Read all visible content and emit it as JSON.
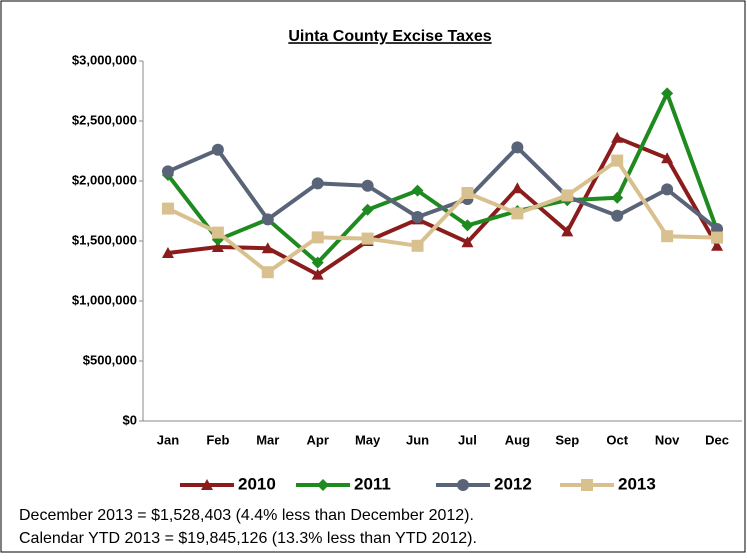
{
  "chart_data": {
    "type": "line",
    "title": "Uinta County Excise Taxes",
    "categories": [
      "Jan",
      "Feb",
      "Mar",
      "Apr",
      "May",
      "Jun",
      "Jul",
      "Aug",
      "Sep",
      "Oct",
      "Nov",
      "Dec"
    ],
    "series": [
      {
        "name": "2010",
        "color": "#8b1c1c",
        "marker": "triangle",
        "values": [
          1400000,
          1450000,
          1440000,
          1220000,
          1500000,
          1680000,
          1490000,
          1940000,
          1580000,
          2360000,
          2190000,
          1460000
        ]
      },
      {
        "name": "2011",
        "color": "#1f8a1f",
        "marker": "diamond",
        "values": [
          2050000,
          1510000,
          1680000,
          1320000,
          1760000,
          1920000,
          1630000,
          1750000,
          1840000,
          1860000,
          2730000,
          1590000
        ]
      },
      {
        "name": "2012",
        "color": "#5a6479",
        "marker": "circle",
        "values": [
          2080000,
          2260000,
          1680000,
          1980000,
          1960000,
          1700000,
          1850000,
          2280000,
          1870000,
          1710000,
          1930000,
          1600000
        ]
      },
      {
        "name": "2013",
        "color": "#d9c08f",
        "marker": "square",
        "values": [
          1770000,
          1570000,
          1240000,
          1530000,
          1520000,
          1460000,
          1900000,
          1730000,
          1880000,
          2170000,
          1540000,
          1528403
        ]
      }
    ],
    "ylim": [
      0,
      3000000
    ],
    "yticks": [
      {
        "value": 0,
        "label": "$0"
      },
      {
        "value": 500000,
        "label": "$500,000"
      },
      {
        "value": 1000000,
        "label": "$1,000,000"
      },
      {
        "value": 1500000,
        "label": "$1,500,000"
      },
      {
        "value": 2000000,
        "label": "$2,000,000"
      },
      {
        "value": 2500000,
        "label": "$2,500,000"
      },
      {
        "value": 3000000,
        "label": "$3,000,000"
      }
    ],
    "grid": false,
    "legend": "bottom",
    "annotations": [
      "December 2013 = $1,528,403 (4.4% less than December 2012).",
      "Calendar YTD 2013 = $19,845,126 (13.3% less than YTD 2012)."
    ]
  }
}
